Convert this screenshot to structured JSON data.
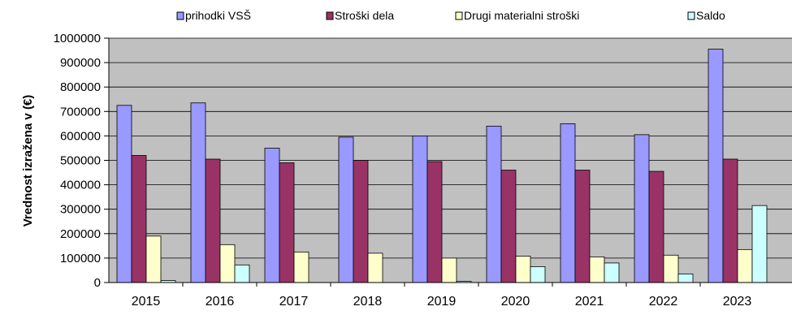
{
  "chart_data": {
    "type": "bar",
    "title": "",
    "xlabel": "",
    "ylabel": "Vrednost izražena v (€)",
    "categories": [
      "2015",
      "2016",
      "2017",
      "2018",
      "2019",
      "2020",
      "2021",
      "2022",
      "2023"
    ],
    "ylim": [
      0,
      1000000
    ],
    "yticks": [
      0,
      100000,
      200000,
      300000,
      400000,
      500000,
      600000,
      700000,
      800000,
      900000,
      1000000
    ],
    "ytick_labels": [
      "0",
      "100000",
      "200000",
      "300000",
      "400000",
      "500000",
      "600000",
      "700000",
      "800000",
      "900000",
      "1000000"
    ],
    "grid": true,
    "legend_position": "top",
    "plot_background": "#c0c0c0",
    "series": [
      {
        "name": "prihodki VSŠ",
        "color": "#9999ff",
        "values": [
          725000,
          735000,
          550000,
          595000,
          600000,
          640000,
          650000,
          605000,
          955000
        ]
      },
      {
        "name": "Stroški dela",
        "color": "#993366",
        "values": [
          520000,
          505000,
          490000,
          500000,
          495000,
          460000,
          460000,
          455000,
          505000
        ]
      },
      {
        "name": "Drugi materialni stroški",
        "color": "#ffffcc",
        "values": [
          190000,
          155000,
          125000,
          120000,
          100000,
          108000,
          105000,
          112000,
          135000
        ]
      },
      {
        "name": "Saldo",
        "color": "#ccffff",
        "values": [
          8000,
          72000,
          0,
          0,
          5000,
          65000,
          80000,
          35000,
          315000
        ]
      }
    ]
  }
}
